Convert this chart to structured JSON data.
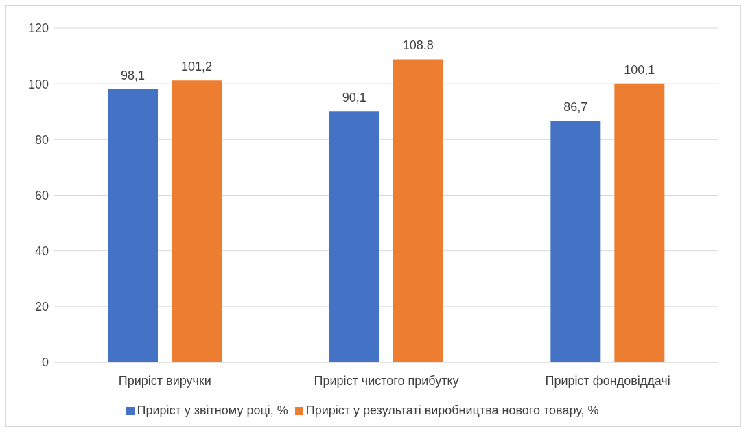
{
  "chart_data": {
    "type": "bar",
    "categories": [
      "Приріст виручки",
      "Приріст чистого прибутку",
      "Приріст фондовіддачі"
    ],
    "series": [
      {
        "name": "Приріст у звітному році, %",
        "color": "#4472c4",
        "values": [
          98.1,
          90.1,
          86.7
        ],
        "value_labels": [
          "98,1",
          "90,1",
          "86,7"
        ]
      },
      {
        "name": "Приріст у результаті виробництва нового товару, %",
        "color": "#ed7d31",
        "values": [
          101.2,
          108.8,
          100.1
        ],
        "value_labels": [
          "101,2",
          "108,8",
          "100,1"
        ]
      }
    ],
    "ylim": [
      0,
      120
    ],
    "yticks": [
      0,
      20,
      40,
      60,
      80,
      100,
      120
    ],
    "grid": "y",
    "legend": "bottom"
  }
}
